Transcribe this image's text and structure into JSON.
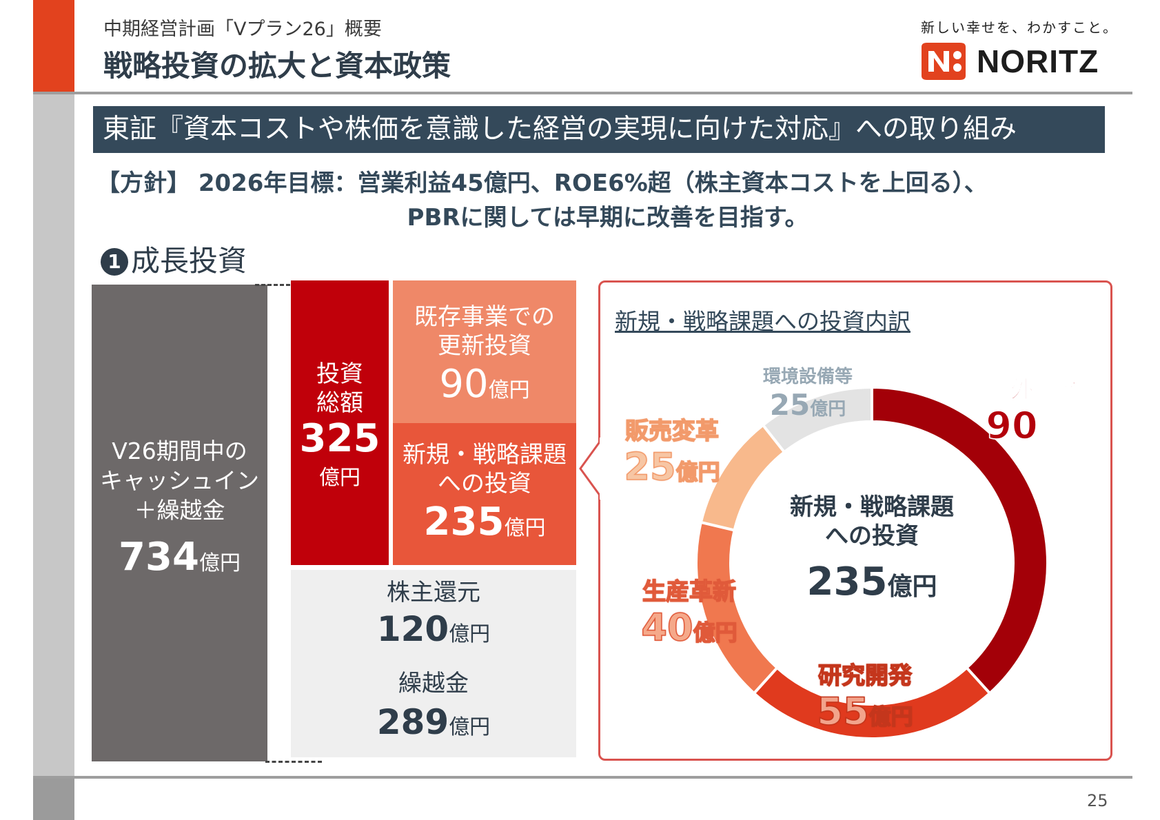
{
  "header": {
    "subtitle": "中期経営計画「Vプラン26」概要",
    "title": "戦略投資の拡大と資本政策",
    "tagline": "新しい幸せを、わかすこと。",
    "logo_text": "NORITZ",
    "logo_color": "#e2421e"
  },
  "banner": "東証『資本コストや株価を意識した経営の実現に向けた対応』への取り組み",
  "policy": {
    "line1": "【方針】 2026年目標：営業利益45億円、ROE6%超（株主資本コストを上回る）、",
    "line2": "PBRに関しては早期に改善を目指す。"
  },
  "section": {
    "number": "1",
    "title": "成長投資"
  },
  "cash_in": {
    "label_lines": [
      "V26期間中の",
      "キャッシュイン",
      "＋繰越金"
    ],
    "value": "734",
    "unit": "億円"
  },
  "investment_total": {
    "label_lines": [
      "投資",
      "総額"
    ],
    "value": "325",
    "unit": "億円"
  },
  "existing_business": {
    "label_lines": [
      "既存事業での",
      "更新投資"
    ],
    "value": "90",
    "unit": "億円"
  },
  "new_strategic": {
    "label_lines": [
      "新規・戦略課題",
      "への投資"
    ],
    "value": "235",
    "unit": "億円"
  },
  "shareholder_return": {
    "label": "株主還元",
    "value": "120",
    "unit": "億円"
  },
  "carryover": {
    "label": "繰越金",
    "value": "289",
    "unit": "億円"
  },
  "breakdown_title": "新規・戦略課題への投資内訳",
  "center": {
    "label_lines": [
      "新規・戦略課題",
      "への投資"
    ],
    "value": "235",
    "unit": "億円"
  },
  "page_number": "25",
  "colors": {
    "cash_grey": "#6d6969",
    "total_red": "#c0000a",
    "existing_salmon": "#ef8868",
    "new_orange": "#e8563a",
    "navy": "#34495a"
  },
  "chart_data": {
    "type": "pie",
    "title": "新規・戦略課題への投資内訳",
    "unit": "億円",
    "total": 235,
    "series": [
      {
        "name": "海外事業",
        "value": 90,
        "color": "#a30008"
      },
      {
        "name": "研究開発",
        "value": 55,
        "color": "#e03a1e"
      },
      {
        "name": "生産革新",
        "value": 40,
        "color": "#f0784f"
      },
      {
        "name": "販売変革",
        "value": 25,
        "color": "#f8b98c"
      },
      {
        "name": "環境設備等",
        "value": 25,
        "color": "#e3e3e3"
      }
    ]
  }
}
